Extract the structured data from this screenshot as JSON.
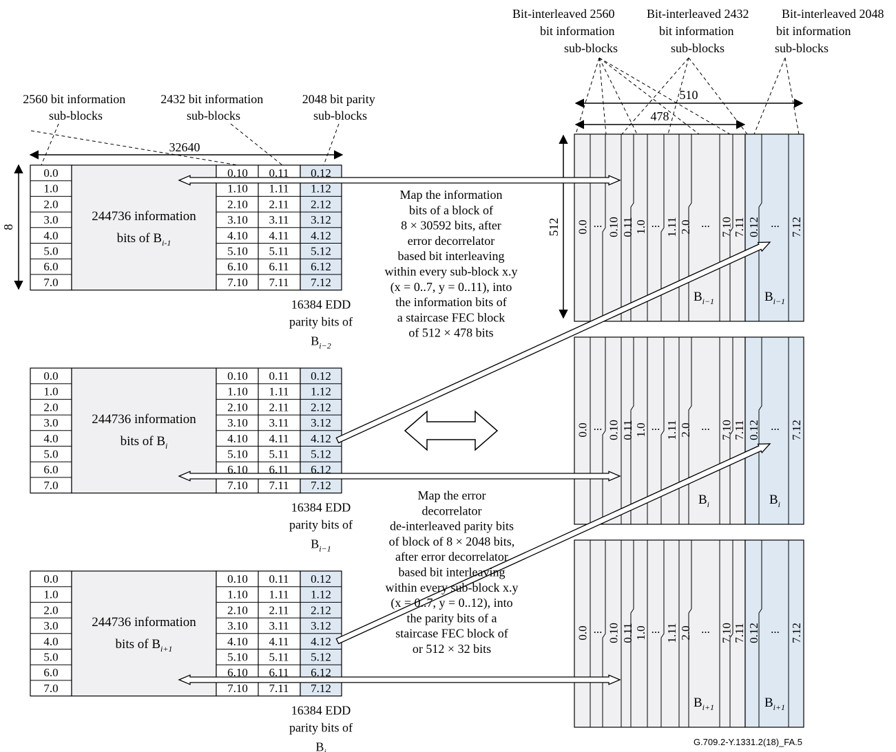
{
  "top_labels": [
    {
      "lines": [
        "Bit-interleaved 2560",
        "bit information",
        "sub-blocks"
      ]
    },
    {
      "lines": [
        "Bit-interleaved 2432",
        "bit information",
        "sub-blocks"
      ]
    },
    {
      "lines": [
        "Bit-interleaved 2048",
        "bit information",
        "sub-blocks"
      ]
    }
  ],
  "left_labels": [
    {
      "lines": [
        "2560 bit information",
        "sub-blocks"
      ]
    },
    {
      "lines": [
        "2432 bit information",
        "sub-blocks"
      ]
    },
    {
      "lines": [
        "2048 bit parity",
        "sub-blocks"
      ]
    }
  ],
  "dims": {
    "width_32640": "32640",
    "width_510": "510",
    "width_478": "478",
    "height_512": "512",
    "height_8": "8"
  },
  "blocks": [
    {
      "info_line1": "244736 information",
      "info_line2": "bits of B",
      "info_sub": "i-1",
      "edd_line1": "16384 EDD",
      "edd_line2": "parity bits of",
      "edd_base": "B",
      "edd_sub": "i−2"
    },
    {
      "info_line1": "244736 information",
      "info_line2": "bits of B",
      "info_sub": "i",
      "edd_line1": "16384 EDD",
      "edd_line2": "parity bits of",
      "edd_base": "B",
      "edd_sub": "i−1"
    },
    {
      "info_line1": "244736 information",
      "info_line2": "bits of B",
      "info_sub": "i+1",
      "edd_line1": "16384 EDD",
      "edd_line2": "parity bits of",
      "edd_base": "B",
      "edd_sub": "i"
    }
  ],
  "row_labels": [
    "0.0",
    "1.0",
    "2.0",
    "3.0",
    "4.0",
    "5.0",
    "6.0",
    "7.0"
  ],
  "col_suffixes": [
    "10",
    "11",
    "12"
  ],
  "stair_cols": [
    "0.0",
    "...",
    "0.10",
    "0.11",
    "1.0",
    "...",
    "1.11",
    "2.0",
    "...",
    "7.10",
    "7.11",
    "0.12",
    "...",
    "7.12"
  ],
  "stair_blocks": [
    {
      "b1_base": "B",
      "b1_sub": "i−1",
      "b2_base": "B",
      "b2_sub": "i−1"
    },
    {
      "b1_base": "B",
      "b1_sub": "i",
      "b2_base": "B",
      "b2_sub": "i"
    },
    {
      "b1_base": "B",
      "b1_sub": "i+1",
      "b2_base": "B",
      "b2_sub": "i+1"
    }
  ],
  "note1": [
    "Map the information",
    "bits of a block of",
    "8 × 30592 bits, after",
    "error decorrelator",
    "based bit interleaving",
    "within every sub-block x.y",
    "(x = 0..7, y = 0..11), into",
    "the information bits of",
    "a staircase FEC block",
    "of 512 × 478 bits"
  ],
  "note2": [
    "Map the error",
    "decorrelator",
    "de-interleaved parity bits",
    "of block of 8 × 2048 bits,",
    "after error decorrelator",
    "based bit interleaving",
    "within every sub-block x.y",
    "(x = 0..7, y = 0..12), into",
    "the parity bits of a",
    "staircase FEC block of",
    "or 512 × 32 bits"
  ],
  "footer": "G.709.2-Y.1331.2(18)_FA.5",
  "colors": {
    "grey_fill": "#f0f0f2",
    "blue_fill": "#dde8f3",
    "line": "#000000"
  }
}
